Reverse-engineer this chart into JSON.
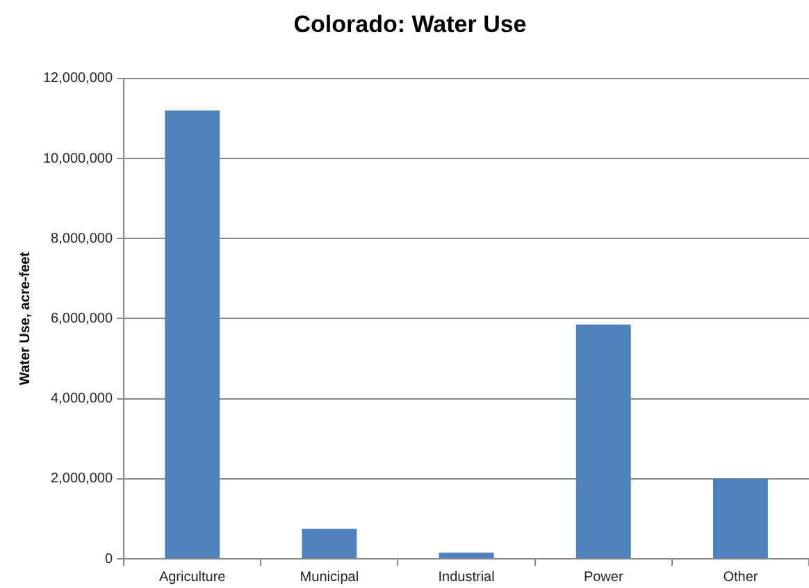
{
  "chart_data": {
    "type": "bar",
    "title": "Colorado: Water Use",
    "ylabel": "Water Use, acre-feet",
    "categories": [
      "Agriculture",
      "Municipal",
      "Industrial",
      "Power",
      "Other"
    ],
    "values": [
      11200000,
      750000,
      150000,
      5850000,
      2000000
    ],
    "color": "#4f81bd",
    "ylim": [
      0,
      12000000
    ],
    "yticks": [
      0,
      {
        "value": 2000000,
        "label": "2,000,000"
      },
      {
        "value": 4000000,
        "label": "4,000,000"
      },
      {
        "value": 6000000,
        "label": "6,000,000"
      },
      {
        "value": 8000000,
        "label": "8,000,000"
      },
      {
        "value": 10000000,
        "label": "10,000,000"
      },
      {
        "value": 12000000,
        "label": "12,000,000"
      }
    ],
    "grid": "y",
    "legend": false
  }
}
